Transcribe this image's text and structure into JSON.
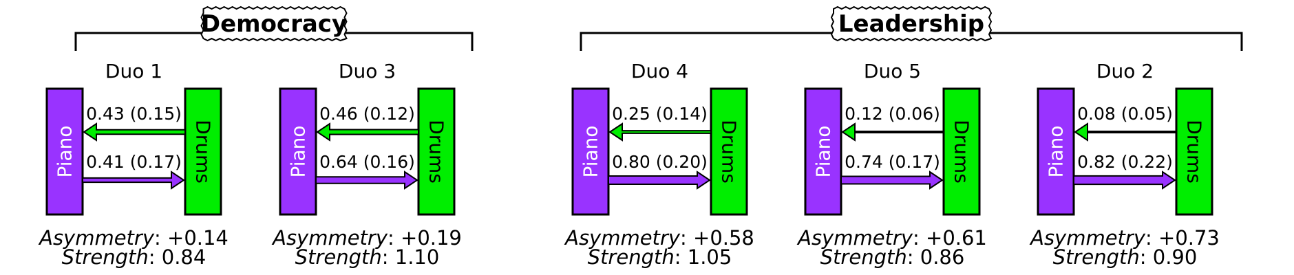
{
  "colors": {
    "piano": "#9933ff",
    "drums": "#00ee00",
    "outline": "#000000"
  },
  "instruments": {
    "piano": "Piano",
    "drums": "Drums"
  },
  "metric_labels": {
    "asymmetry": "Asymmetry",
    "strength": "Strength"
  },
  "groups": [
    {
      "label": "Democracy",
      "duos": [
        {
          "title": "Duo 1",
          "drums_to_piano": "0.43 (0.15)",
          "drums_to_piano_value": 0.43,
          "piano_to_drums": "0.41 (0.17)",
          "piano_to_drums_value": 0.41,
          "asymmetry": "+0.14",
          "strength": "0.84"
        },
        {
          "title": "Duo 3",
          "drums_to_piano": "0.46 (0.12)",
          "drums_to_piano_value": 0.46,
          "piano_to_drums": "0.64 (0.16)",
          "piano_to_drums_value": 0.64,
          "asymmetry": "+0.19",
          "strength": "1.10"
        }
      ]
    },
    {
      "label": "Leadership",
      "duos": [
        {
          "title": "Duo 4",
          "drums_to_piano": "0.25 (0.14)",
          "drums_to_piano_value": 0.25,
          "piano_to_drums": "0.80 (0.20)",
          "piano_to_drums_value": 0.8,
          "asymmetry": "+0.58",
          "strength": "1.05"
        },
        {
          "title": "Duo 5",
          "drums_to_piano": "0.12 (0.06)",
          "drums_to_piano_value": 0.12,
          "piano_to_drums": "0.74 (0.17)",
          "piano_to_drums_value": 0.74,
          "asymmetry": "+0.61",
          "strength": "0.86"
        },
        {
          "title": "Duo 2",
          "drums_to_piano": "0.08 (0.05)",
          "drums_to_piano_value": 0.08,
          "piano_to_drums": "0.82 (0.22)",
          "piano_to_drums_value": 0.82,
          "asymmetry": "+0.73",
          "strength": "0.90"
        }
      ]
    }
  ]
}
